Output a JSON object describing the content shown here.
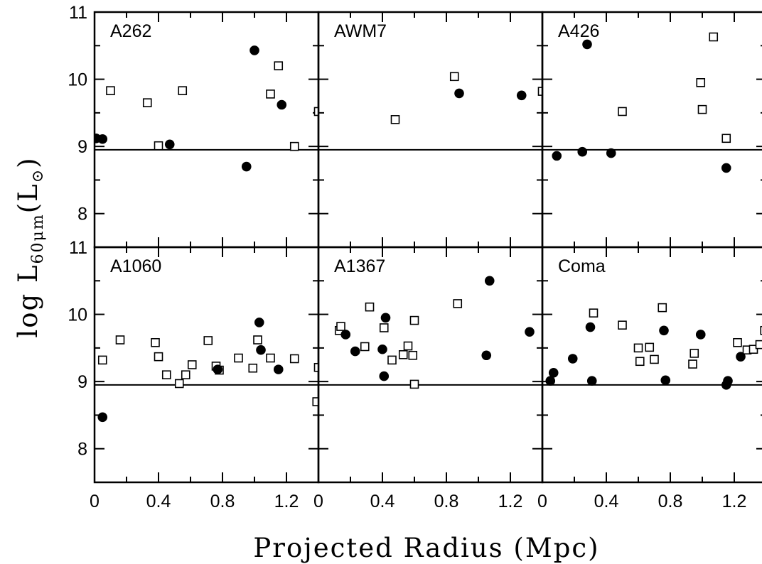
{
  "chart_data": {
    "type": "scatter",
    "layout": "2x3 panel grid",
    "xlabel": "Projected Radius (Mpc)",
    "ylabel": {
      "main": "log L",
      "sub": "60μm",
      "unit": "(L",
      "unit_sub": "⊙",
      "close": ")"
    },
    "xlim": [
      0,
      1.4
    ],
    "ylim": [
      7.5,
      11
    ],
    "xticks": [
      0,
      0.4,
      0.8,
      1.2
    ],
    "xtick_labels": [
      "0",
      "0.4",
      "0.8",
      "1.2"
    ],
    "yticks": [
      8,
      9,
      10,
      11
    ],
    "ytick_labels": [
      "8",
      "9",
      "10",
      "11"
    ],
    "reference_line_y": 8.95,
    "markers": {
      "filled": "filled circle",
      "open": "open square"
    },
    "panels": [
      {
        "label": "A262",
        "filled": [
          [
            0.01,
            9.12
          ],
          [
            0.05,
            9.11
          ],
          [
            0.47,
            9.03
          ],
          [
            0.95,
            8.7
          ],
          [
            1.0,
            10.43
          ],
          [
            1.17,
            9.62
          ]
        ],
        "open": [
          [
            0.1,
            9.83
          ],
          [
            0.33,
            9.65
          ],
          [
            0.4,
            9.01
          ],
          [
            0.55,
            9.83
          ],
          [
            1.1,
            9.78
          ],
          [
            1.15,
            10.2
          ],
          [
            1.25,
            9.0
          ],
          [
            1.4,
            9.52
          ]
        ]
      },
      {
        "label": "AWM7",
        "filled": [
          [
            0.88,
            9.79
          ],
          [
            1.27,
            9.76
          ]
        ],
        "open": [
          [
            0.48,
            9.4
          ],
          [
            0.85,
            10.04
          ],
          [
            1.4,
            9.82
          ]
        ]
      },
      {
        "label": "A426",
        "filled": [
          [
            0.09,
            8.86
          ],
          [
            0.25,
            8.92
          ],
          [
            0.28,
            10.52
          ],
          [
            0.43,
            8.9
          ],
          [
            1.15,
            8.68
          ]
        ],
        "open": [
          [
            0.5,
            9.52
          ],
          [
            0.99,
            9.95
          ],
          [
            1.0,
            9.55
          ],
          [
            1.07,
            10.63
          ],
          [
            1.15,
            9.12
          ]
        ]
      },
      {
        "label": "A1060",
        "filled": [
          [
            0.05,
            8.47
          ],
          [
            0.77,
            9.18
          ],
          [
            1.03,
            9.88
          ],
          [
            1.04,
            9.47
          ],
          [
            1.15,
            9.18
          ]
        ],
        "open": [
          [
            0.05,
            9.32
          ],
          [
            0.16,
            9.62
          ],
          [
            0.38,
            9.58
          ],
          [
            0.4,
            9.37
          ],
          [
            0.45,
            9.1
          ],
          [
            0.53,
            8.97
          ],
          [
            0.57,
            9.1
          ],
          [
            0.61,
            9.25
          ],
          [
            0.71,
            9.61
          ],
          [
            0.76,
            9.23
          ],
          [
            0.78,
            9.17
          ],
          [
            0.9,
            9.35
          ],
          [
            0.99,
            9.2
          ],
          [
            1.02,
            9.62
          ],
          [
            1.1,
            9.35
          ],
          [
            1.25,
            9.34
          ],
          [
            1.39,
            8.7
          ],
          [
            1.4,
            9.21
          ]
        ]
      },
      {
        "label": "A1367",
        "filled": [
          [
            0.17,
            9.7
          ],
          [
            0.23,
            9.45
          ],
          [
            0.4,
            9.48
          ],
          [
            0.41,
            9.08
          ],
          [
            0.42,
            9.95
          ],
          [
            1.05,
            9.39
          ],
          [
            1.07,
            10.5
          ],
          [
            1.32,
            9.74
          ]
        ],
        "open": [
          [
            0.13,
            9.76
          ],
          [
            0.14,
            9.82
          ],
          [
            0.29,
            9.52
          ],
          [
            0.32,
            10.11
          ],
          [
            0.41,
            9.8
          ],
          [
            0.46,
            9.32
          ],
          [
            0.53,
            9.4
          ],
          [
            0.56,
            9.53
          ],
          [
            0.59,
            9.39
          ],
          [
            0.6,
            9.91
          ],
          [
            0.6,
            8.96
          ],
          [
            0.87,
            10.16
          ]
        ]
      },
      {
        "label": "Coma",
        "filled": [
          [
            0.05,
            9.01
          ],
          [
            0.07,
            9.13
          ],
          [
            0.19,
            9.34
          ],
          [
            0.3,
            9.81
          ],
          [
            0.31,
            9.01
          ],
          [
            0.76,
            9.76
          ],
          [
            0.77,
            9.02
          ],
          [
            0.99,
            9.7
          ],
          [
            1.15,
            8.95
          ],
          [
            1.16,
            9.01
          ],
          [
            1.24,
            9.37
          ]
        ],
        "open": [
          [
            0.32,
            10.02
          ],
          [
            0.5,
            9.84
          ],
          [
            0.6,
            9.5
          ],
          [
            0.61,
            9.3
          ],
          [
            0.67,
            9.51
          ],
          [
            0.7,
            9.33
          ],
          [
            0.75,
            10.1
          ],
          [
            0.94,
            9.26
          ],
          [
            0.95,
            9.42
          ],
          [
            1.22,
            9.58
          ],
          [
            1.28,
            9.47
          ],
          [
            1.32,
            9.48
          ],
          [
            1.36,
            9.55
          ],
          [
            1.39,
            9.76
          ],
          [
            1.41,
            9.48
          ]
        ]
      }
    ]
  }
}
